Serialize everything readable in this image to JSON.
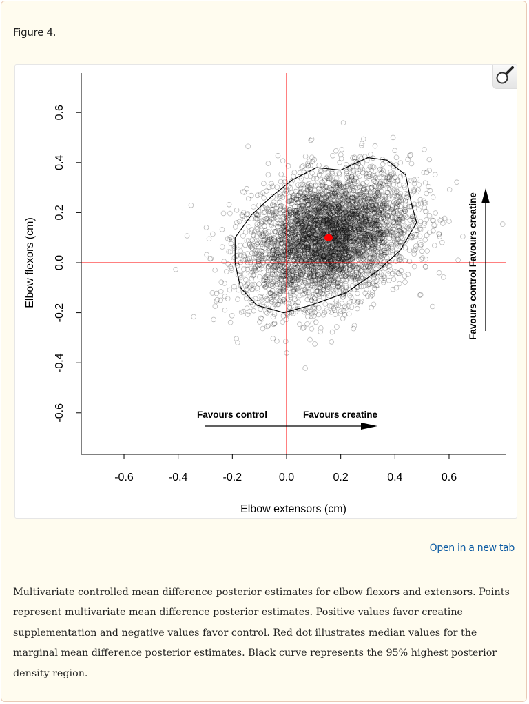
{
  "figure": {
    "title": "Figure 4.",
    "open_link": "Open in a new tab",
    "zoom_icon": "magnifier-icon",
    "caption": "Multivariate controlled mean difference posterior estimates for elbow flexors and extensors. Points represent multivariate mean difference posterior estimates. Positive values favor creatine supplementation and negative values favor control. Red dot illustrates median values for the marginal mean difference posterior estimates. Black curve represents the 95% highest posterior density region."
  },
  "chart_data": {
    "type": "scatter",
    "title": "",
    "xlabel": "Elbow extensors (cm)",
    "ylabel": "Elbow flexors (cm)",
    "xlim": [
      -0.76,
      0.8
    ],
    "ylim": [
      -0.75,
      0.76
    ],
    "xticks": [
      "-0.6",
      "-0.4",
      "-0.2",
      "0.0",
      "0.2",
      "0.4",
      "0.6"
    ],
    "yticks": [
      "-0.6",
      "-0.4",
      "-0.2",
      "0.0",
      "0.2",
      "0.4",
      "0.6"
    ],
    "grid": false,
    "reference_lines": {
      "x": 0,
      "y": 0,
      "color": "#ff0000"
    },
    "point_cloud": {
      "center": [
        0.155,
        0.1
      ],
      "sd": [
        0.15,
        0.13
      ],
      "correlation": 0.3,
      "marker": "open-circle",
      "color": "#000000"
    },
    "median_point": {
      "x": 0.155,
      "y": 0.1,
      "color": "#ff0000"
    },
    "hpd_95_contour": [
      [
        0.37,
        0.41
      ],
      [
        0.3,
        0.42
      ],
      [
        0.2,
        0.37
      ],
      [
        0.11,
        0.38
      ],
      [
        0.02,
        0.33
      ],
      [
        -0.06,
        0.26
      ],
      [
        -0.13,
        0.19
      ],
      [
        -0.19,
        0.1
      ],
      [
        -0.19,
        0.0
      ],
      [
        -0.17,
        -0.1
      ],
      [
        -0.11,
        -0.17
      ],
      [
        -0.01,
        -0.2
      ],
      [
        0.09,
        -0.17
      ],
      [
        0.22,
        -0.12
      ],
      [
        0.34,
        -0.03
      ],
      [
        0.42,
        0.05
      ],
      [
        0.48,
        0.16
      ],
      [
        0.46,
        0.24
      ],
      [
        0.44,
        0.35
      ]
    ],
    "annotations": {
      "x_left": "Favours control",
      "x_right": "Favours creatine",
      "y_vertical": "Favours control Favours creatine"
    }
  }
}
